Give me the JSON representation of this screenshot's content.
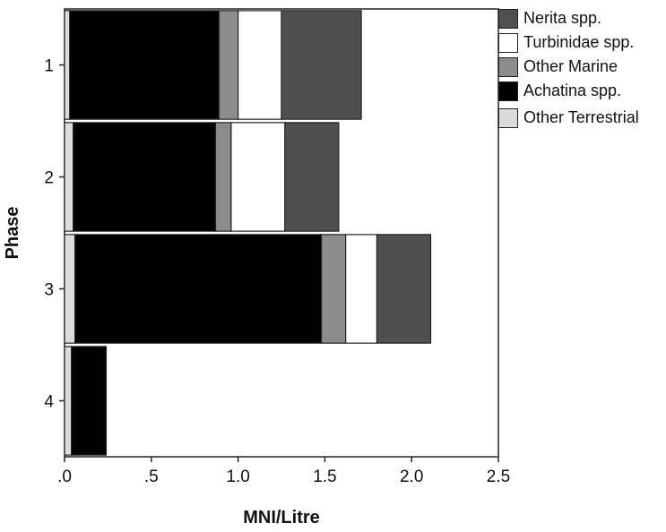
{
  "chart_data": {
    "type": "bar",
    "orientation": "horizontal",
    "stacked": true,
    "xlabel": "MNI/Litre",
    "ylabel": "Phase",
    "xlim": [
      0,
      2.5
    ],
    "x_ticks": [
      ".0",
      ".5",
      "1.0",
      "1.5",
      "2.0",
      "2.5"
    ],
    "x_tick_values": [
      0,
      0.5,
      1.0,
      1.5,
      2.0,
      2.5
    ],
    "categories": [
      "1",
      "2",
      "3",
      "4"
    ],
    "legend_position": "right",
    "grid": false,
    "series": [
      {
        "name": "Other Terrestrial",
        "color": "#dcdcdc",
        "values": [
          0.03,
          0.05,
          0.06,
          0.04
        ]
      },
      {
        "name": "Achatina spp.",
        "color": "#000000",
        "values": [
          0.86,
          0.82,
          1.42,
          0.2
        ]
      },
      {
        "name": "Other Marine",
        "color": "#8c8c8c",
        "values": [
          0.11,
          0.09,
          0.14,
          0.0
        ]
      },
      {
        "name": "Turbinidae spp.",
        "color": "#ffffff",
        "values": [
          0.25,
          0.31,
          0.18,
          0.0
        ]
      },
      {
        "name": "Nerita spp.",
        "color": "#505050",
        "values": [
          0.46,
          0.31,
          0.31,
          0.0
        ]
      }
    ],
    "legend_order": [
      "Nerita spp.",
      "Turbinidae spp.",
      "Other Marine",
      "Achatina spp.",
      "Other Terrestrial"
    ]
  }
}
